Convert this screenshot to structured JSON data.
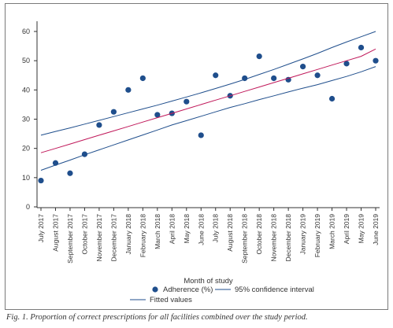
{
  "caption": "Fig. 1. Proportion of correct prescriptions for all facilities combined over the study period.",
  "colors": {
    "points": "#1f4e8c",
    "fitted": "#c0185a",
    "ci": "#1f4e8c",
    "axis": "#333333"
  },
  "chart_data": {
    "type": "scatter",
    "title": "",
    "xlabel": "Month of study",
    "ylabel": "",
    "ylim": [
      0,
      60
    ],
    "yticks": [
      0,
      10,
      20,
      30,
      40,
      50,
      60
    ],
    "grid": false,
    "legend_position": "bottom",
    "categories": [
      "July 2017",
      "August 2017",
      "September 2017",
      "October 2017",
      "November 2017",
      "December 2017",
      "January 2018",
      "February 2018",
      "March 2018",
      "April 2018",
      "May 2018",
      "June 2018",
      "July 2018",
      "August 2018",
      "September 2018",
      "October 2018",
      "November 2018",
      "December 2018",
      "January 2019",
      "February 2019",
      "March 2019",
      "April 2019",
      "May 2019",
      "June 2019"
    ],
    "series": [
      {
        "name": "Adherence (%)",
        "kind": "points",
        "values": [
          9,
          15,
          11.5,
          18,
          28,
          32.5,
          40,
          44,
          31.5,
          32,
          36,
          24.5,
          45,
          38,
          44,
          51.5,
          44,
          43.5,
          48,
          45,
          37,
          49,
          54.5,
          50
        ]
      },
      {
        "name": "Fitted values",
        "kind": "line",
        "values": [
          18.5,
          20,
          21.5,
          23,
          24.5,
          26,
          27.5,
          29,
          30.5,
          32,
          33.5,
          35,
          36.5,
          38,
          39.5,
          41,
          42.5,
          44,
          45.5,
          47,
          48.5,
          50,
          51.5,
          54
        ]
      },
      {
        "name": "95% confidence interval",
        "kind": "ci-upper",
        "values": [
          24.5,
          25.8,
          27,
          28.3,
          29.6,
          30.9,
          32.2,
          33.5,
          34.8,
          36.2,
          37.6,
          39,
          40.5,
          42,
          43.6,
          45.3,
          47,
          48.8,
          50.6,
          52.5,
          54.5,
          56.4,
          58.2,
          60
        ]
      },
      {
        "name": "95% confidence interval",
        "kind": "ci-lower",
        "values": [
          12.5,
          14.3,
          16,
          17.8,
          19.5,
          21.2,
          22.9,
          24.6,
          26.3,
          28,
          29.5,
          31,
          32.5,
          34,
          35.3,
          36.7,
          38,
          39.3,
          40.6,
          41.8,
          43.2,
          44.6,
          46.2,
          48
        ]
      }
    ],
    "legend": [
      {
        "name": "Adherence (%)",
        "symbol": "dot"
      },
      {
        "name": "95% confidence interval",
        "symbol": "line-blue"
      },
      {
        "name": "Fitted values",
        "symbol": "line-blue"
      }
    ]
  }
}
